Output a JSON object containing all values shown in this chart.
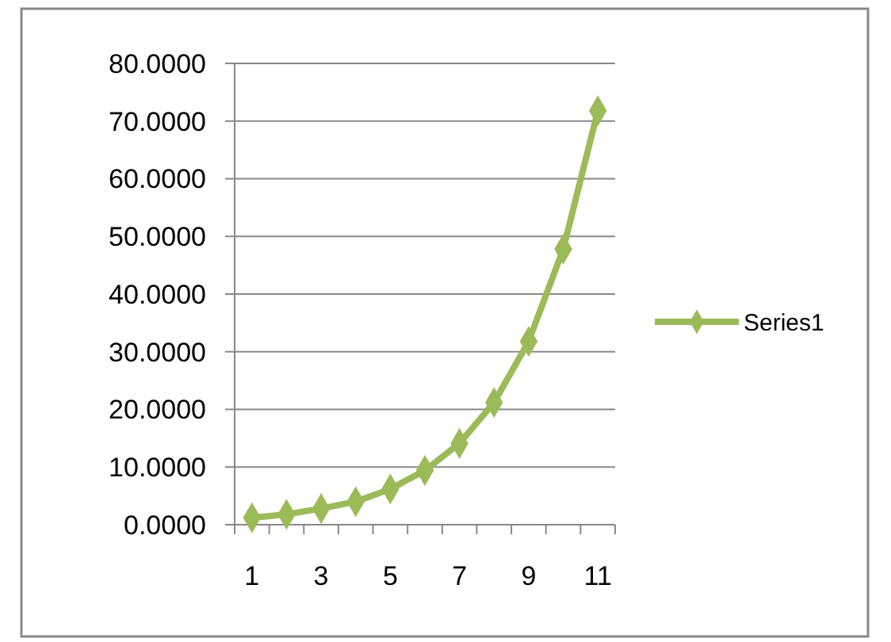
{
  "chart_data": {
    "type": "line",
    "categories": [
      "1",
      null,
      "3",
      null,
      "5",
      null,
      "7",
      null,
      "9",
      null,
      "11"
    ],
    "series": [
      {
        "name": "Series1",
        "color": "#9bbb59",
        "values": [
          1.2,
          1.8,
          2.8,
          4.0,
          6.2,
          9.4,
          14.1,
          21.2,
          31.8,
          47.8,
          71.8
        ]
      }
    ],
    "ylim": [
      0,
      80
    ],
    "yticks": [
      {
        "value": 0,
        "label": "0.0000"
      },
      {
        "value": 10,
        "label": "10.0000"
      },
      {
        "value": 20,
        "label": "20.0000"
      },
      {
        "value": 30,
        "label": "30.0000"
      },
      {
        "value": 40,
        "label": "40.0000"
      },
      {
        "value": 50,
        "label": "50.0000"
      },
      {
        "value": 60,
        "label": "60.0000"
      },
      {
        "value": 70,
        "label": "70.0000"
      },
      {
        "value": 80,
        "label": "80.0000"
      }
    ],
    "grid": "y",
    "legend": "right",
    "marker": "diamond",
    "line_style": "solid"
  }
}
